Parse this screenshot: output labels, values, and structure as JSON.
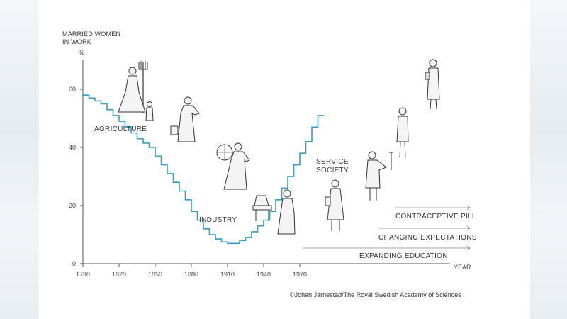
{
  "chart_data": {
    "type": "line",
    "title": "",
    "ylabel_line1": "MARRIED WOMEN",
    "ylabel_line2": "IN WORK",
    "yunit": "%",
    "xlabel": "YEAR",
    "x_ticks": [
      "1790",
      "1820",
      "1850",
      "1880",
      "1910",
      "1940",
      "1970"
    ],
    "y_ticks": [
      "0",
      "20",
      "40",
      "60"
    ],
    "xlim": [
      1790,
      2000
    ],
    "ylim": [
      0,
      67
    ],
    "series": [
      {
        "line_style": "step",
        "x": [
          1790,
          1795,
          1800,
          1805,
          1810,
          1815,
          1820,
          1825,
          1830,
          1835,
          1840,
          1845,
          1850,
          1855,
          1860,
          1865,
          1870,
          1875,
          1880,
          1885,
          1890,
          1895,
          1900,
          1905,
          1910,
          1915,
          1920,
          1925,
          1930,
          1935,
          1940,
          1945,
          1950,
          1955,
          1960,
          1965,
          1970,
          1975,
          1980,
          1985
        ],
        "y": [
          58,
          57,
          56,
          55,
          53,
          51,
          49,
          47,
          45,
          43,
          41.5,
          40,
          37,
          34,
          31,
          28,
          25,
          22,
          18,
          15,
          12,
          10,
          8.5,
          7.5,
          7,
          7,
          8,
          9,
          11,
          13,
          15,
          18,
          22,
          26,
          30,
          34,
          38,
          42,
          47,
          51
        ]
      }
    ],
    "annotations": {
      "agriculture": "AGRICULTURE",
      "industry": "INDUSTRY",
      "service_line1": "SERVICE",
      "service_line2": "SOCIETY",
      "pill": "CONTRACEPTIVE PILL",
      "expectations": "CHANGING EXPECTATIONS",
      "education": "EXPANDING EDUCATION"
    },
    "line_color": "#3a9bc0",
    "grid": false
  },
  "credit": "©Johan Jarnestad/The Royal Swedish Academy of Sciences"
}
